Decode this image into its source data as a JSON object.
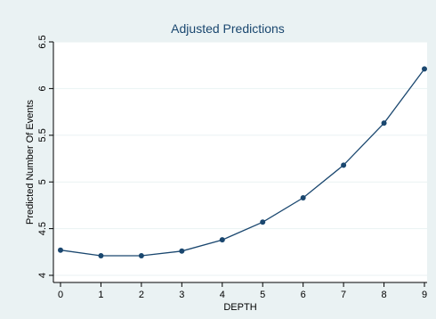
{
  "chart_data": {
    "type": "line",
    "title": "Adjusted Predictions",
    "xlabel": "DEPTH",
    "ylabel": "Predicted Number Of Events",
    "x": [
      0,
      1,
      2,
      3,
      4,
      5,
      6,
      7,
      8,
      9
    ],
    "series": [
      {
        "values": [
          4.27,
          4.21,
          4.21,
          4.26,
          4.38,
          4.57,
          4.83,
          5.18,
          5.63,
          6.21
        ]
      }
    ],
    "xlim": [
      0,
      9
    ],
    "ylim": [
      4,
      6.5
    ],
    "xticks": [
      "0",
      "1",
      "2",
      "3",
      "4",
      "5",
      "6",
      "7",
      "8",
      "9"
    ],
    "yticks": [
      "4",
      "4.5",
      "5",
      "5.5",
      "6",
      "6.5"
    ],
    "grid": "horizontal",
    "colors": {
      "background": "#eaf2f3",
      "plot_area": "#ffffff",
      "grid": "#eaf2f3",
      "line": "#1a476f",
      "marker": "#1a476f",
      "text": "#1a476f",
      "axis": "#000000"
    }
  }
}
